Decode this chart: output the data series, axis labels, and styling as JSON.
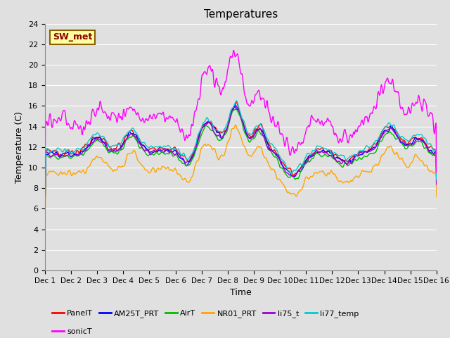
{
  "title": "Temperatures",
  "xlabel": "Time",
  "ylabel": "Temperature (C)",
  "ylim": [
    0,
    24
  ],
  "yticks": [
    0,
    2,
    4,
    6,
    8,
    10,
    12,
    14,
    16,
    18,
    20,
    22,
    24
  ],
  "xlim": [
    0,
    15
  ],
  "xtick_labels": [
    "Dec 1",
    "Dec 2",
    "Dec 3",
    "Dec 4",
    "Dec 5",
    "Dec 6",
    "Dec 7",
    "Dec 8",
    "Dec 9",
    "Dec 10",
    "Dec 11",
    "Dec 12",
    "Dec 13",
    "Dec 14",
    "Dec 15",
    "Dec 16"
  ],
  "xtick_positions": [
    0,
    1,
    2,
    3,
    4,
    5,
    6,
    7,
    8,
    9,
    10,
    11,
    12,
    13,
    14,
    15
  ],
  "annotation_text": "SW_met",
  "annotation_color": "#8B0000",
  "annotation_bg": "#FFFFA0",
  "annotation_border": "#8B6000",
  "series": {
    "PanelT": {
      "color": "#FF0000",
      "lw": 1.0
    },
    "AM25T_PRT": {
      "color": "#0000FF",
      "lw": 1.0
    },
    "AirT": {
      "color": "#00BB00",
      "lw": 1.0
    },
    "NR01_PRT": {
      "color": "#FFA500",
      "lw": 1.0
    },
    "li75_t": {
      "color": "#9900CC",
      "lw": 1.0
    },
    "li77_temp": {
      "color": "#00CCCC",
      "lw": 1.0
    },
    "sonicT": {
      "color": "#FF00FF",
      "lw": 1.0
    }
  },
  "background_color": "#E0E0E0",
  "grid_color": "#FFFFFF",
  "n_points": 900
}
